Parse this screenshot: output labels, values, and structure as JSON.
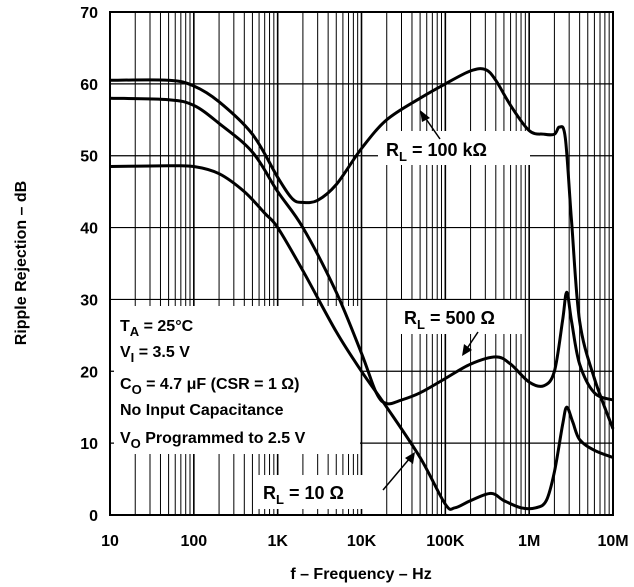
{
  "chart_data": {
    "type": "line",
    "xlabel": "f – Frequency – Hz",
    "ylabel": "Ripple Rejection – dB",
    "x_scale": "log",
    "xlim": [
      10,
      10000000
    ],
    "ylim": [
      0,
      70
    ],
    "grid": true,
    "x_ticks": [
      {
        "value": 10,
        "label": "10"
      },
      {
        "value": 100,
        "label": "100"
      },
      {
        "value": 1000,
        "label": "1K"
      },
      {
        "value": 10000,
        "label": "10K"
      },
      {
        "value": 100000,
        "label": "100K"
      },
      {
        "value": 1000000,
        "label": "1M"
      },
      {
        "value": 10000000,
        "label": "10M"
      }
    ],
    "y_ticks": [
      0,
      10,
      20,
      30,
      40,
      50,
      60,
      70
    ],
    "conditions": [
      {
        "main": "T",
        "sub": "A",
        "rest": " = 25°C"
      },
      {
        "main": "V",
        "sub": "I",
        "rest": " = 3.5 V"
      },
      {
        "main": "C",
        "sub": "O",
        "rest": " = 4.7 μF (CSR = 1 Ω)"
      },
      {
        "main": "No Input Capacitance",
        "sub": "",
        "rest": ""
      },
      {
        "main": "V",
        "sub": "O",
        "rest": " Programmed to 2.5 V"
      }
    ],
    "series": [
      {
        "label_main": "R",
        "label_sub": "L",
        "label_rest": " = 100 kΩ",
        "x": [
          10,
          50,
          100,
          200,
          500,
          1000,
          1500,
          2000,
          3000,
          5000,
          10000,
          20000,
          50000,
          100000,
          200000,
          300000,
          400000,
          600000,
          1000000,
          1500000,
          2000000,
          2300000,
          2700000,
          3200000,
          4000000,
          6000000,
          10000000
        ],
        "y": [
          60.5,
          60.5,
          59.7,
          57.5,
          53,
          47,
          44,
          43.5,
          43.8,
          46,
          51,
          55,
          58,
          60,
          61.8,
          62,
          60.5,
          57,
          53.5,
          53,
          53,
          54,
          52.5,
          41,
          27,
          19,
          12
        ]
      },
      {
        "label_main": "R",
        "label_sub": "L",
        "label_rest": " = 500 Ω",
        "x": [
          10,
          50,
          100,
          200,
          500,
          1000,
          2000,
          5000,
          10000,
          15000,
          20000,
          30000,
          50000,
          100000,
          200000,
          400000,
          600000,
          1000000,
          1500000,
          2000000,
          2500000,
          2800000,
          3200000,
          4000000,
          6000000,
          10000000
        ],
        "y": [
          58,
          57.8,
          57,
          54.5,
          50.5,
          45,
          40,
          31,
          22.5,
          17,
          15.5,
          16,
          17,
          19,
          21,
          22,
          21,
          18.5,
          18,
          20,
          27,
          31,
          27,
          21,
          17,
          16
        ]
      },
      {
        "label_main": "R",
        "label_sub": "L",
        "label_rest": " = 10 Ω",
        "x": [
          10,
          50,
          100,
          200,
          400,
          700,
          1000,
          2000,
          5000,
          10000,
          20000,
          50000,
          100000,
          130000,
          200000,
          350000,
          500000,
          800000,
          1200000,
          1600000,
          2000000,
          2500000,
          2800000,
          3300000,
          4000000,
          6000000,
          10000000
        ],
        "y": [
          48.5,
          48.6,
          48.5,
          47.5,
          45,
          42,
          40,
          34,
          25.5,
          20,
          15,
          8,
          1.5,
          1,
          2,
          3,
          2,
          1,
          1,
          2,
          6,
          12.5,
          15,
          13,
          10.5,
          9,
          8
        ]
      }
    ]
  }
}
